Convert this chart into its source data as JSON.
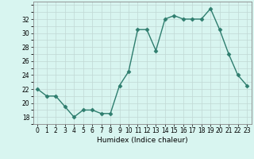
{
  "x": [
    0,
    1,
    2,
    3,
    4,
    5,
    6,
    7,
    8,
    9,
    10,
    11,
    12,
    13,
    14,
    15,
    16,
    17,
    18,
    19,
    20,
    21,
    22,
    23
  ],
  "y": [
    22,
    21,
    21,
    19.5,
    18,
    19,
    19,
    18.5,
    18.5,
    22.5,
    24.5,
    30.5,
    30.5,
    27.5,
    32,
    32.5,
    32,
    32,
    32,
    33.5,
    30.5,
    27,
    24,
    22.5
  ],
  "line_color": "#2e7d6e",
  "marker": "D",
  "marker_size": 2.5,
  "bg_color": "#d8f5f0",
  "grid_color": "#c0d8d4",
  "xlabel": "Humidex (Indice chaleur)",
  "xlim": [
    -0.5,
    23.5
  ],
  "ylim": [
    17,
    34.5
  ],
  "yticks": [
    18,
    20,
    22,
    24,
    26,
    28,
    30,
    32
  ],
  "xticks": [
    0,
    1,
    2,
    3,
    4,
    5,
    6,
    7,
    8,
    9,
    10,
    11,
    12,
    13,
    14,
    15,
    16,
    17,
    18,
    19,
    20,
    21,
    22,
    23
  ],
  "xlabel_fontsize": 6.5,
  "tick_fontsize": 5.5,
  "line_width": 1.0
}
